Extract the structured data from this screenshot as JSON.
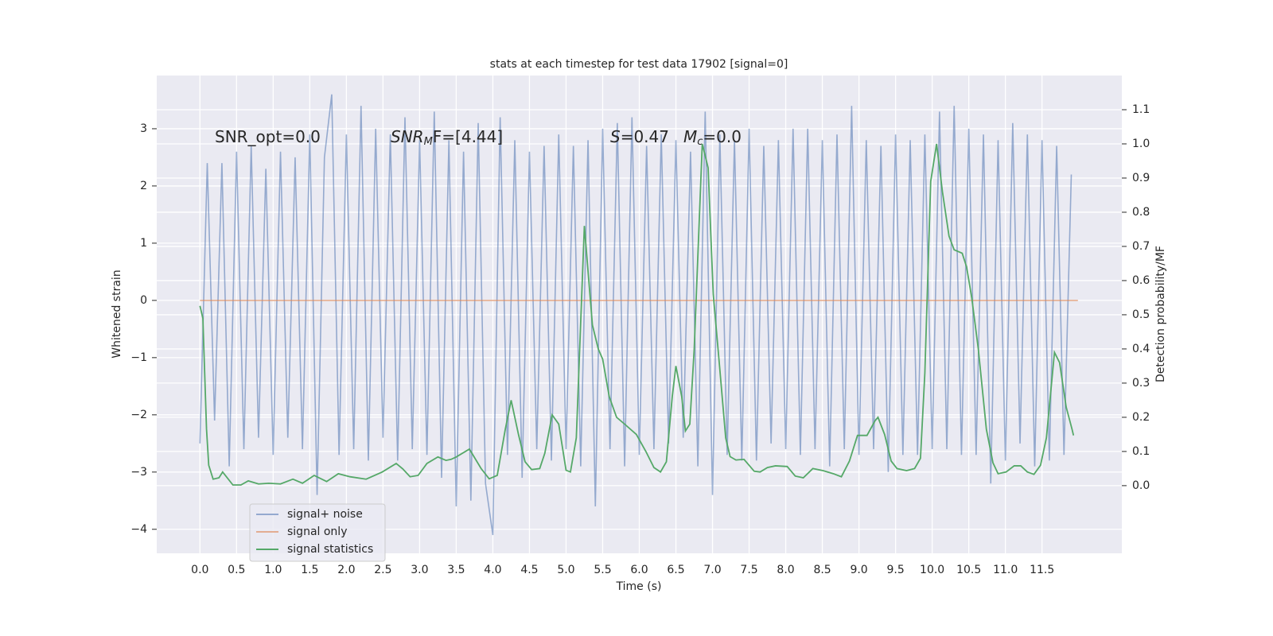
{
  "chart_data": {
    "type": "line",
    "title": "stats at each timestep for test data 17902 [signal=0]",
    "x_label": "Time (s)",
    "y_label": "Whitened strain",
    "y2_label": "Detection probability/MF",
    "grid": true,
    "legend": "lower left",
    "xlim": [
      -0.59,
      12.59
    ],
    "ylim": [
      -4.42,
      3.93
    ],
    "y2lim": [
      -0.198,
      1.2
    ],
    "xticks": [
      {
        "value": 0,
        "label": "0.0"
      },
      0.5,
      {
        "value": 1,
        "label": "1.0"
      },
      1.5,
      {
        "value": 2,
        "label": "2.0"
      },
      2.5,
      {
        "value": 3,
        "label": "3.0"
      },
      3.5,
      {
        "value": 4,
        "label": "4.0"
      },
      4.5,
      {
        "value": 5,
        "label": "5.0"
      },
      5.5,
      {
        "value": 6,
        "label": "6.0"
      },
      6.5,
      {
        "value": 7,
        "label": "7.0"
      },
      7.5,
      {
        "value": 8,
        "label": "8.0"
      },
      8.5,
      {
        "value": 9,
        "label": "9.0"
      },
      9.5,
      {
        "value": 10,
        "label": "10.0"
      },
      10.5,
      {
        "value": 11,
        "label": "11.0"
      },
      11.5
    ],
    "yticks": [
      {
        "value": -4,
        "label": "−4"
      },
      {
        "value": -3,
        "label": "−3"
      },
      {
        "value": -2,
        "label": "−2"
      },
      {
        "value": -1,
        "label": "−1"
      },
      0,
      1,
      2,
      3
    ],
    "y2ticks": [
      {
        "value": 0,
        "label": "0.0"
      },
      0.1,
      0.2,
      0.3,
      0.4,
      0.5,
      0.6,
      0.7,
      0.8,
      0.9,
      {
        "value": 1,
        "label": "1.0"
      },
      1.1
    ],
    "annotations": [
      {
        "segments": [
          {
            "text": "SNR_opt=0.0",
            "style": "normal"
          }
        ]
      },
      {
        "segments": [
          {
            "text": "SNR",
            "style": "italic"
          },
          {
            "text": "M",
            "style": "sub"
          },
          {
            "text": "F=[4.44]",
            "style": "normal"
          }
        ]
      },
      {
        "segments": [
          {
            "text": "S",
            "style": "italic"
          },
          {
            "text": "=0.47",
            "style": "normal"
          }
        ]
      },
      {
        "segments": [
          {
            "text": "M",
            "style": "italic"
          },
          {
            "text": "c",
            "style": "sub"
          },
          {
            "text": "=0.0",
            "style": "normal"
          }
        ]
      }
    ],
    "series": [
      {
        "name": "signal+ noise",
        "color": "#4c72b0",
        "opacity": 0.55,
        "axis": "y",
        "x": [
          0.0,
          0.1,
          0.2,
          0.3,
          0.4,
          0.5,
          0.6,
          0.7,
          0.8,
          0.9,
          1.0,
          1.1,
          1.2,
          1.3,
          1.4,
          1.5,
          1.6,
          1.7,
          1.8,
          1.9,
          2.0,
          2.1,
          2.2,
          2.3,
          2.4,
          2.5,
          2.6,
          2.7,
          2.8,
          2.9,
          3.0,
          3.1,
          3.2,
          3.3,
          3.4,
          3.5,
          3.6,
          3.7,
          3.8,
          3.9,
          4.0,
          4.1,
          4.2,
          4.3,
          4.4,
          4.5,
          4.6,
          4.7,
          4.8,
          4.9,
          5.0,
          5.1,
          5.2,
          5.3,
          5.4,
          5.5,
          5.6,
          5.7,
          5.8,
          5.9,
          6.0,
          6.1,
          6.2,
          6.3,
          6.4,
          6.5,
          6.6,
          6.7,
          6.8,
          6.9,
          7.0,
          7.1,
          7.2,
          7.3,
          7.4,
          7.5,
          7.6,
          7.7,
          7.8,
          7.9,
          8.0,
          8.1,
          8.2,
          8.3,
          8.4,
          8.5,
          8.6,
          8.7,
          8.8,
          8.9,
          9.0,
          9.1,
          9.2,
          9.3,
          9.4,
          9.5,
          9.6,
          9.7,
          9.8,
          9.9,
          10.0,
          10.1,
          10.2,
          10.3,
          10.4,
          10.5,
          10.6,
          10.7,
          10.8,
          10.9,
          11.0,
          11.1,
          11.2,
          11.3,
          11.4,
          11.5,
          11.6,
          11.7,
          11.8,
          11.9
        ],
        "values": [
          -2.5,
          2.4,
          -2.1,
          2.4,
          -2.9,
          2.6,
          -2.6,
          2.7,
          -2.4,
          2.3,
          -2.7,
          2.6,
          -2.4,
          2.5,
          -2.6,
          2.9,
          -3.4,
          2.5,
          3.6,
          -2.7,
          2.9,
          -2.6,
          3.4,
          -2.8,
          3.0,
          -2.4,
          2.9,
          -2.8,
          3.2,
          -2.6,
          2.8,
          -2.7,
          3.3,
          -3.1,
          2.8,
          -3.6,
          2.6,
          -3.5,
          3.1,
          -3.2,
          -4.1,
          3.2,
          -2.7,
          2.8,
          -3.1,
          2.6,
          -2.6,
          2.7,
          -2.8,
          2.9,
          -2.6,
          2.7,
          -2.9,
          2.8,
          -3.6,
          3.0,
          -2.6,
          3.1,
          -2.9,
          3.2,
          -2.7,
          2.7,
          -2.6,
          2.9,
          -2.5,
          2.8,
          -2.4,
          2.6,
          -2.9,
          3.3,
          -3.4,
          2.9,
          -2.7,
          2.8,
          -2.8,
          3.0,
          -2.8,
          2.7,
          -2.5,
          2.8,
          -2.6,
          3.0,
          -2.7,
          3.0,
          -2.6,
          2.8,
          -2.9,
          2.9,
          -2.6,
          3.4,
          -2.7,
          2.8,
          -2.6,
          2.7,
          -3.0,
          2.9,
          -2.7,
          2.8,
          -2.7,
          2.9,
          -2.6,
          3.3,
          -2.6,
          3.4,
          -2.7,
          3.0,
          -2.7,
          2.9,
          -3.2,
          2.8,
          -2.8,
          3.1,
          -2.5,
          2.9,
          -2.9,
          2.8,
          -2.8,
          2.7,
          -2.7,
          2.2
        ]
      },
      {
        "name": "signal only",
        "color": "#dd8452",
        "opacity": 0.6,
        "axis": "y",
        "x": [
          0.0,
          11.99
        ],
        "values": [
          0,
          0
        ]
      },
      {
        "name": "signal statistics",
        "color": "#55a868",
        "opacity": 1,
        "axis": "y2",
        "x": [
          0.0,
          0.04,
          0.09,
          0.12,
          0.18,
          0.26,
          0.31,
          0.45,
          0.56,
          0.66,
          0.8,
          0.94,
          1.1,
          1.27,
          1.4,
          1.56,
          1.73,
          1.89,
          2.05,
          2.27,
          2.49,
          2.68,
          2.77,
          2.87,
          2.98,
          3.1,
          3.25,
          3.36,
          3.43,
          3.5,
          3.68,
          3.84,
          3.95,
          4.06,
          4.17,
          4.25,
          4.35,
          4.44,
          4.53,
          4.64,
          4.71,
          4.81,
          4.9,
          5.0,
          5.06,
          5.14,
          5.25,
          5.36,
          5.44,
          5.5,
          5.59,
          5.69,
          5.8,
          5.96,
          6.09,
          6.2,
          6.29,
          6.37,
          6.45,
          6.5,
          6.58,
          6.63,
          6.69,
          6.75,
          6.86,
          6.94,
          7.01,
          7.1,
          7.18,
          7.24,
          7.32,
          7.43,
          7.57,
          7.65,
          7.75,
          7.86,
          8.02,
          8.13,
          8.24,
          8.37,
          8.51,
          8.65,
          8.76,
          8.87,
          8.98,
          9.11,
          9.22,
          9.26,
          9.35,
          9.44,
          9.52,
          9.65,
          9.76,
          9.84,
          9.9,
          9.98,
          10.06,
          10.14,
          10.23,
          10.3,
          10.41,
          10.47,
          10.54,
          10.63,
          10.74,
          10.83,
          10.9,
          11.01,
          11.12,
          11.21,
          11.3,
          11.39,
          11.48,
          11.56,
          11.67,
          11.74,
          11.83,
          11.91,
          11.93
        ],
        "values": [
          0.526,
          0.49,
          0.165,
          0.06,
          0.019,
          0.023,
          0.04,
          0.002,
          0.002,
          0.014,
          0.005,
          0.007,
          0.005,
          0.019,
          0.007,
          0.03,
          0.012,
          0.035,
          0.026,
          0.019,
          0.04,
          0.065,
          0.049,
          0.026,
          0.03,
          0.065,
          0.084,
          0.074,
          0.077,
          0.084,
          0.107,
          0.05,
          0.02,
          0.03,
          0.165,
          0.25,
          0.15,
          0.07,
          0.047,
          0.05,
          0.095,
          0.207,
          0.18,
          0.045,
          0.04,
          0.14,
          0.76,
          0.47,
          0.4,
          0.37,
          0.26,
          0.2,
          0.18,
          0.15,
          0.1,
          0.053,
          0.04,
          0.07,
          0.26,
          0.35,
          0.26,
          0.16,
          0.18,
          0.4,
          1.0,
          0.93,
          0.56,
          0.34,
          0.14,
          0.085,
          0.075,
          0.077,
          0.042,
          0.04,
          0.053,
          0.058,
          0.056,
          0.028,
          0.023,
          0.05,
          0.044,
          0.035,
          0.026,
          0.072,
          0.147,
          0.147,
          0.19,
          0.2,
          0.15,
          0.072,
          0.05,
          0.044,
          0.05,
          0.08,
          0.33,
          0.89,
          1.0,
          0.86,
          0.73,
          0.69,
          0.68,
          0.64,
          0.55,
          0.4,
          0.165,
          0.067,
          0.035,
          0.04,
          0.058,
          0.058,
          0.04,
          0.033,
          0.06,
          0.14,
          0.39,
          0.36,
          0.23,
          0.165,
          0.147
        ]
      }
    ]
  }
}
